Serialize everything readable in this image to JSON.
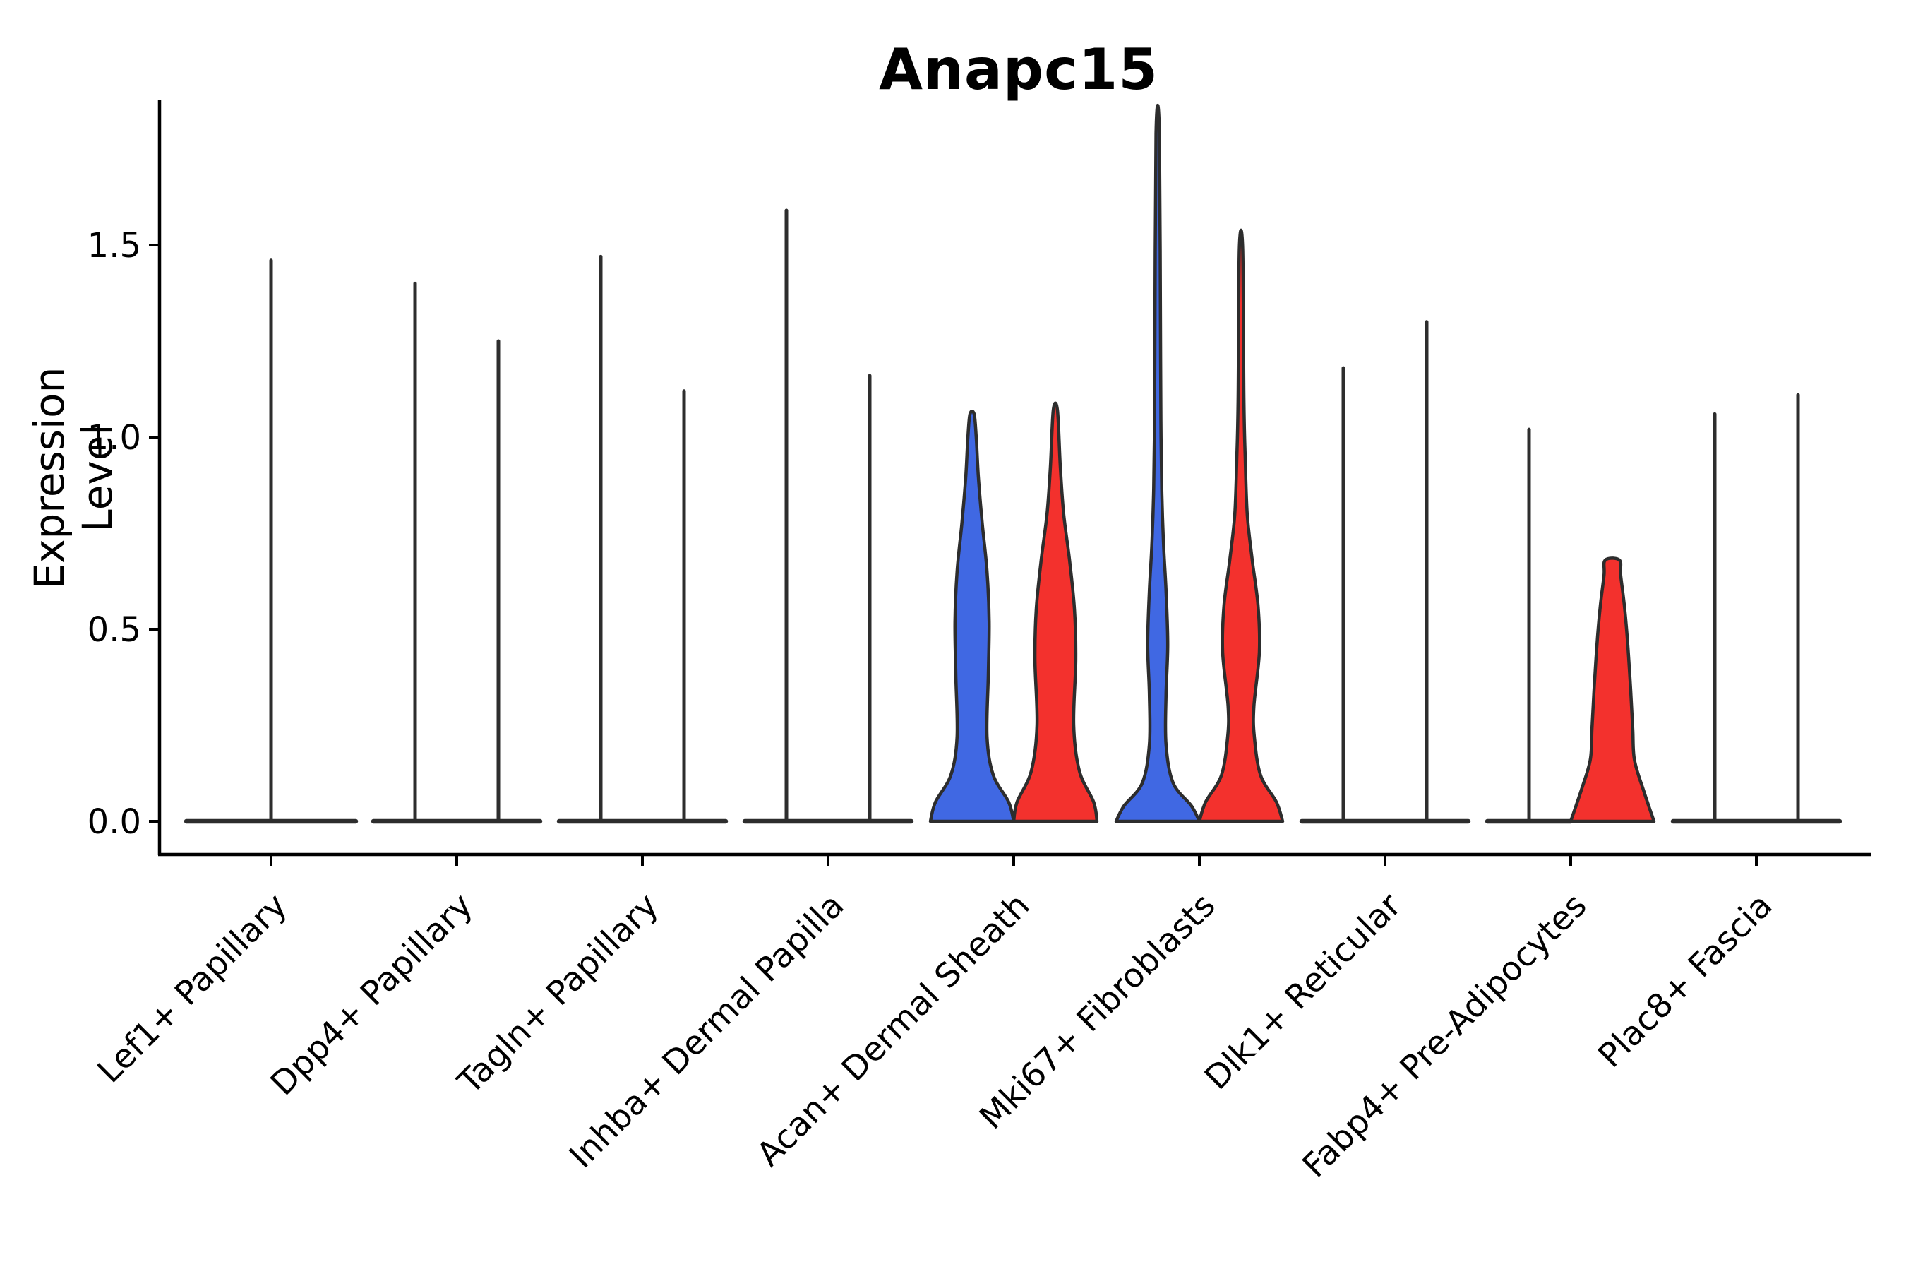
{
  "chart_data": {
    "type": "violin",
    "title": "Anapc15",
    "ylabel": "Expression Level",
    "xlabel": "",
    "legend": "none",
    "grid": false,
    "ylim": [
      -0.09,
      1.88
    ],
    "yticks": [
      {
        "value": 0.0,
        "label": "0.0"
      },
      {
        "value": 0.5,
        "label": "0.5"
      },
      {
        "value": 1.0,
        "label": "1.0"
      },
      {
        "value": 1.5,
        "label": "1.5"
      }
    ],
    "categories": [
      "Lef1+ Papillary",
      "Dpp4+ Papillary",
      "Tagln+ Papillary",
      "Inhba+ Dermal Papilla",
      "Acan+ Dermal Sheath",
      "Mki67+ Fibroblasts",
      "Dlk1+ Reticular",
      "Fabp4+ Pre-Adipocytes",
      "Plac8+ Fascia"
    ],
    "colors": {
      "blue_fill": "#4068E3",
      "red_fill": "#F3312D",
      "outline": "#2D2D2D",
      "axis": "#000000"
    },
    "violins": [
      {
        "category": "Lef1+ Papillary",
        "violins": [
          {
            "pos": "center",
            "type": "spike",
            "max": 1.46
          }
        ]
      },
      {
        "category": "Dpp4+ Papillary",
        "violins": [
          {
            "pos": "left",
            "type": "spike",
            "max": 1.4
          },
          {
            "pos": "right",
            "type": "spike",
            "max": 1.25
          }
        ]
      },
      {
        "category": "Tagln+ Papillary",
        "violins": [
          {
            "pos": "left",
            "type": "spike",
            "max": 1.47
          },
          {
            "pos": "right",
            "type": "spike",
            "max": 1.12
          }
        ]
      },
      {
        "category": "Inhba+ Dermal Papilla",
        "violins": [
          {
            "pos": "left",
            "type": "spike",
            "max": 1.59
          },
          {
            "pos": "right",
            "type": "spike",
            "max": 1.16
          }
        ]
      },
      {
        "category": "Acan+ Dermal Sheath",
        "violins": [
          {
            "pos": "left",
            "type": "filled",
            "color": "blue_fill",
            "max": 1.06,
            "profile": [
              [
                0,
                1.0
              ],
              [
                0.05,
                0.88
              ],
              [
                0.12,
                0.51
              ],
              [
                0.22,
                0.36
              ],
              [
                0.38,
                0.39
              ],
              [
                0.52,
                0.41
              ],
              [
                0.65,
                0.36
              ],
              [
                0.78,
                0.24
              ],
              [
                0.9,
                0.15
              ],
              [
                1.0,
                0.1
              ],
              [
                1.06,
                0.05
              ]
            ]
          },
          {
            "pos": "right",
            "type": "filled",
            "color": "red_fill",
            "max": 1.07,
            "profile": [
              [
                0,
                1.0
              ],
              [
                0.05,
                0.92
              ],
              [
                0.13,
                0.58
              ],
              [
                0.25,
                0.44
              ],
              [
                0.42,
                0.49
              ],
              [
                0.55,
                0.46
              ],
              [
                0.68,
                0.34
              ],
              [
                0.8,
                0.2
              ],
              [
                0.92,
                0.12
              ],
              [
                1.07,
                0.05
              ]
            ]
          }
        ]
      },
      {
        "category": "Mki67+ Fibroblasts",
        "violins": [
          {
            "pos": "left",
            "type": "filled",
            "color": "blue_fill",
            "max": 1.79,
            "profile": [
              [
                0,
                1.0
              ],
              [
                0.04,
                0.81
              ],
              [
                0.1,
                0.37
              ],
              [
                0.2,
                0.2
              ],
              [
                0.33,
                0.2
              ],
              [
                0.46,
                0.24
              ],
              [
                0.6,
                0.2
              ],
              [
                0.72,
                0.14
              ],
              [
                0.85,
                0.1
              ],
              [
                1.0,
                0.08
              ],
              [
                1.2,
                0.07
              ],
              [
                1.79,
                0.04
              ]
            ]
          },
          {
            "pos": "right",
            "type": "filled",
            "color": "red_fill",
            "max": 1.49,
            "profile": [
              [
                0,
                1.0
              ],
              [
                0.05,
                0.85
              ],
              [
                0.12,
                0.47
              ],
              [
                0.22,
                0.32
              ],
              [
                0.3,
                0.31
              ],
              [
                0.44,
                0.44
              ],
              [
                0.56,
                0.41
              ],
              [
                0.68,
                0.27
              ],
              [
                0.8,
                0.15
              ],
              [
                0.95,
                0.1
              ],
              [
                1.1,
                0.07
              ],
              [
                1.49,
                0.04
              ]
            ]
          }
        ]
      },
      {
        "category": "Dlk1+ Reticular",
        "violins": [
          {
            "pos": "left",
            "type": "spike",
            "max": 1.18
          },
          {
            "pos": "right",
            "type": "spike",
            "max": 1.3
          }
        ]
      },
      {
        "category": "Fabp4+ Pre-Adipocytes",
        "violins": [
          {
            "pos": "left",
            "type": "spike",
            "max": 1.02
          },
          {
            "pos": "right",
            "type": "filled",
            "color": "red_fill",
            "max": 0.68,
            "blunt_top": true,
            "profile": [
              [
                0,
                1.0
              ],
              [
                0.08,
                0.75
              ],
              [
                0.16,
                0.53
              ],
              [
                0.24,
                0.49
              ],
              [
                0.34,
                0.44
              ],
              [
                0.46,
                0.37
              ],
              [
                0.56,
                0.29
              ],
              [
                0.64,
                0.2
              ],
              [
                0.68,
                0.17
              ]
            ]
          }
        ]
      },
      {
        "category": "Plac8+ Fascia",
        "violins": [
          {
            "pos": "left",
            "type": "spike",
            "max": 1.06
          },
          {
            "pos": "right",
            "type": "spike",
            "max": 1.11
          }
        ]
      }
    ]
  }
}
